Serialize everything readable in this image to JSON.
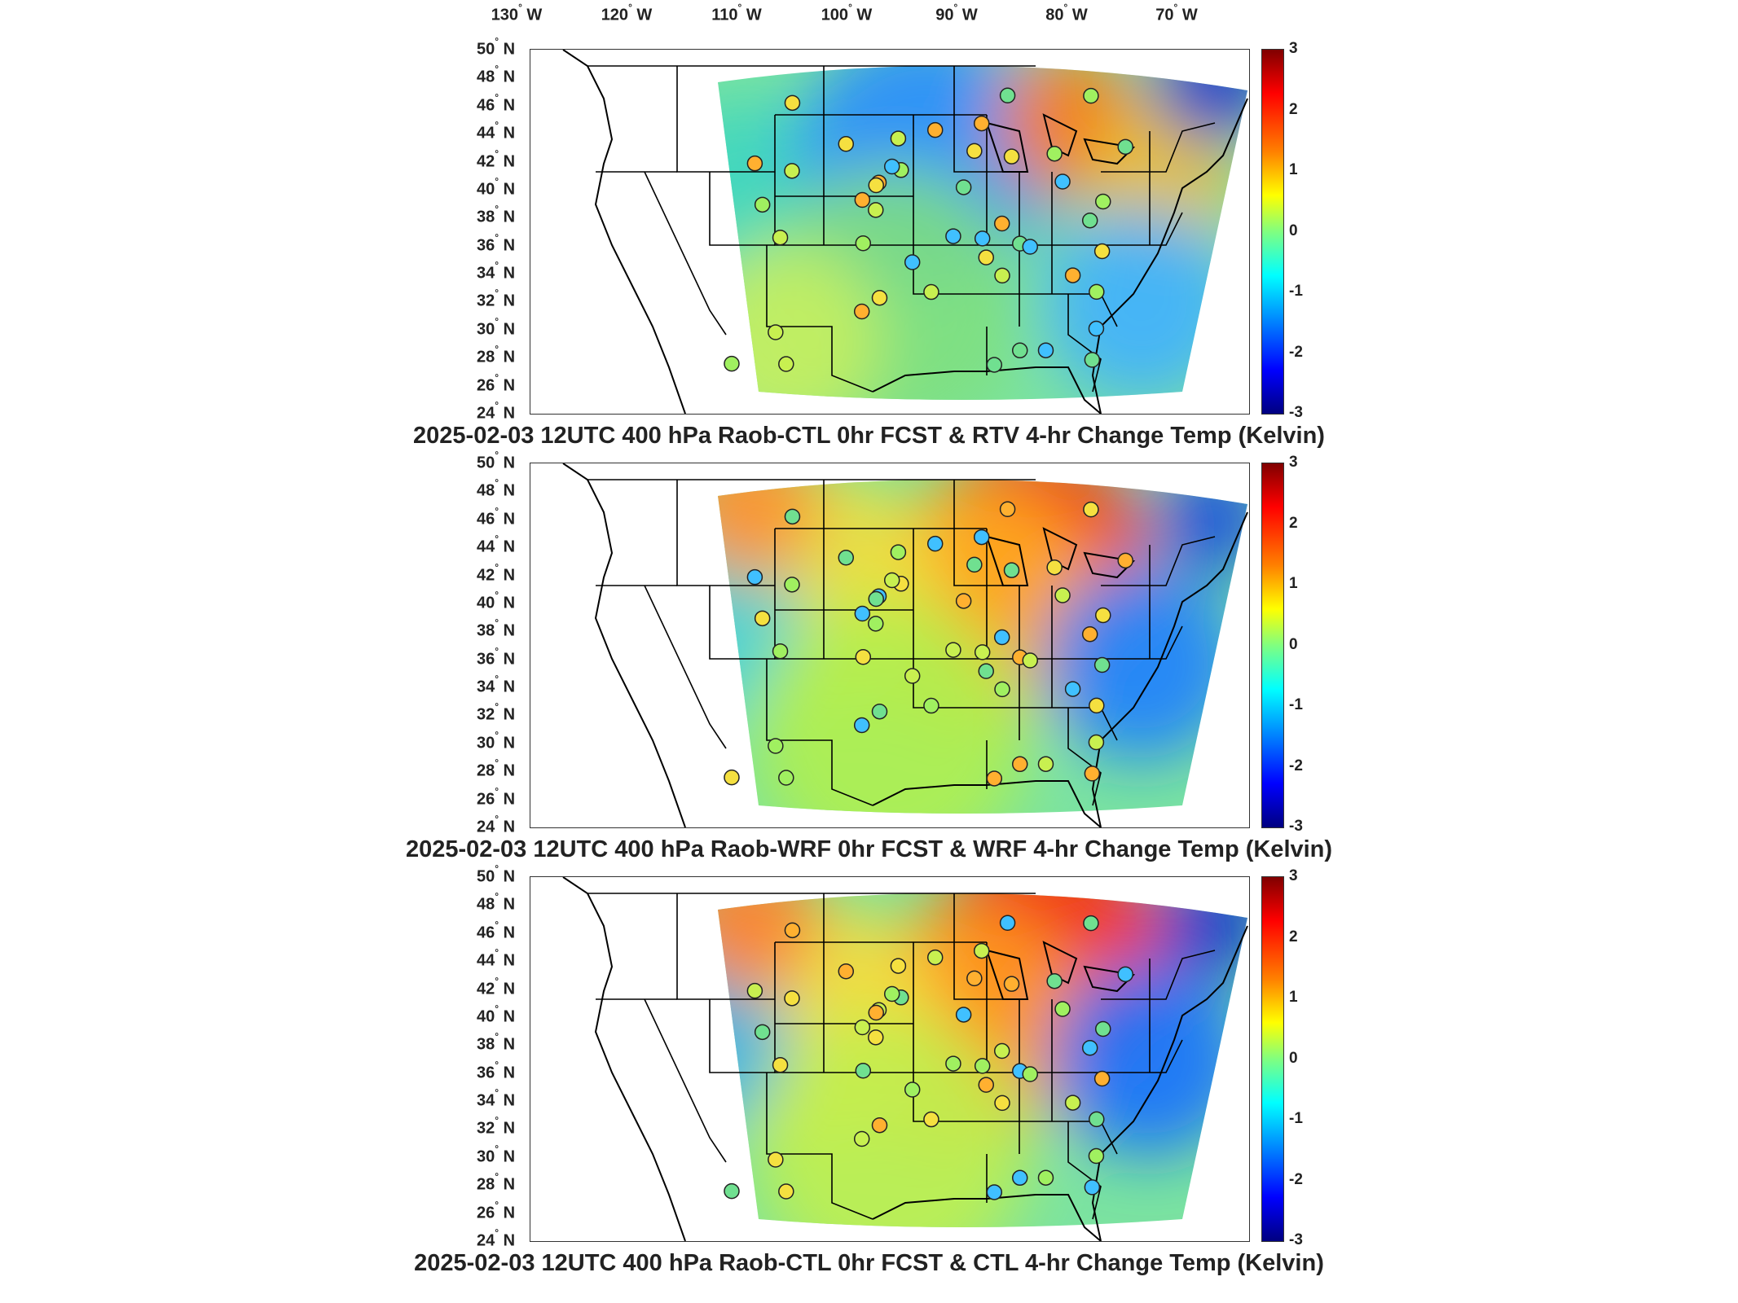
{
  "longitude_labels": [
    {
      "deg": "130",
      "dir": "W"
    },
    {
      "deg": "120",
      "dir": "W"
    },
    {
      "deg": "110",
      "dir": "W"
    },
    {
      "deg": "100",
      "dir": "W"
    },
    {
      "deg": "90",
      "dir": "W"
    },
    {
      "deg": "80",
      "dir": "W"
    },
    {
      "deg": "70",
      "dir": "W"
    }
  ],
  "latitude_labels": [
    {
      "deg": "50",
      "dir": "N"
    },
    {
      "deg": "48",
      "dir": "N"
    },
    {
      "deg": "46",
      "dir": "N"
    },
    {
      "deg": "44",
      "dir": "N"
    },
    {
      "deg": "42",
      "dir": "N"
    },
    {
      "deg": "40",
      "dir": "N"
    },
    {
      "deg": "38",
      "dir": "N"
    },
    {
      "deg": "36",
      "dir": "N"
    },
    {
      "deg": "34",
      "dir": "N"
    },
    {
      "deg": "32",
      "dir": "N"
    },
    {
      "deg": "30",
      "dir": "N"
    },
    {
      "deg": "28",
      "dir": "N"
    },
    {
      "deg": "26",
      "dir": "N"
    },
    {
      "deg": "24",
      "dir": "N"
    }
  ],
  "colorbar": {
    "ticks": [
      "3",
      "2",
      "1",
      "0",
      "-1",
      "-2",
      "-3"
    ],
    "colormap": "jet",
    "range": [
      -3,
      3
    ]
  },
  "panels": [
    {
      "title": "2025-02-03 12UTC 400 hPa Raob-CTL 0hr FCST & RTV 4-hr Change Temp (Kelvin)",
      "scheme": "cool"
    },
    {
      "title": "2025-02-03 12UTC 400 hPa Raob-WRF 0hr FCST & WRF 4-hr Change Temp (Kelvin)",
      "scheme": "warm"
    },
    {
      "title": "2025-02-03 12UTC 400 hPa Raob-CTL 0hr FCST & CTL 4-hr Change Temp (Kelvin)",
      "scheme": "warm2"
    }
  ],
  "colors": {
    "frame": "#333333",
    "outline": "#000000"
  }
}
